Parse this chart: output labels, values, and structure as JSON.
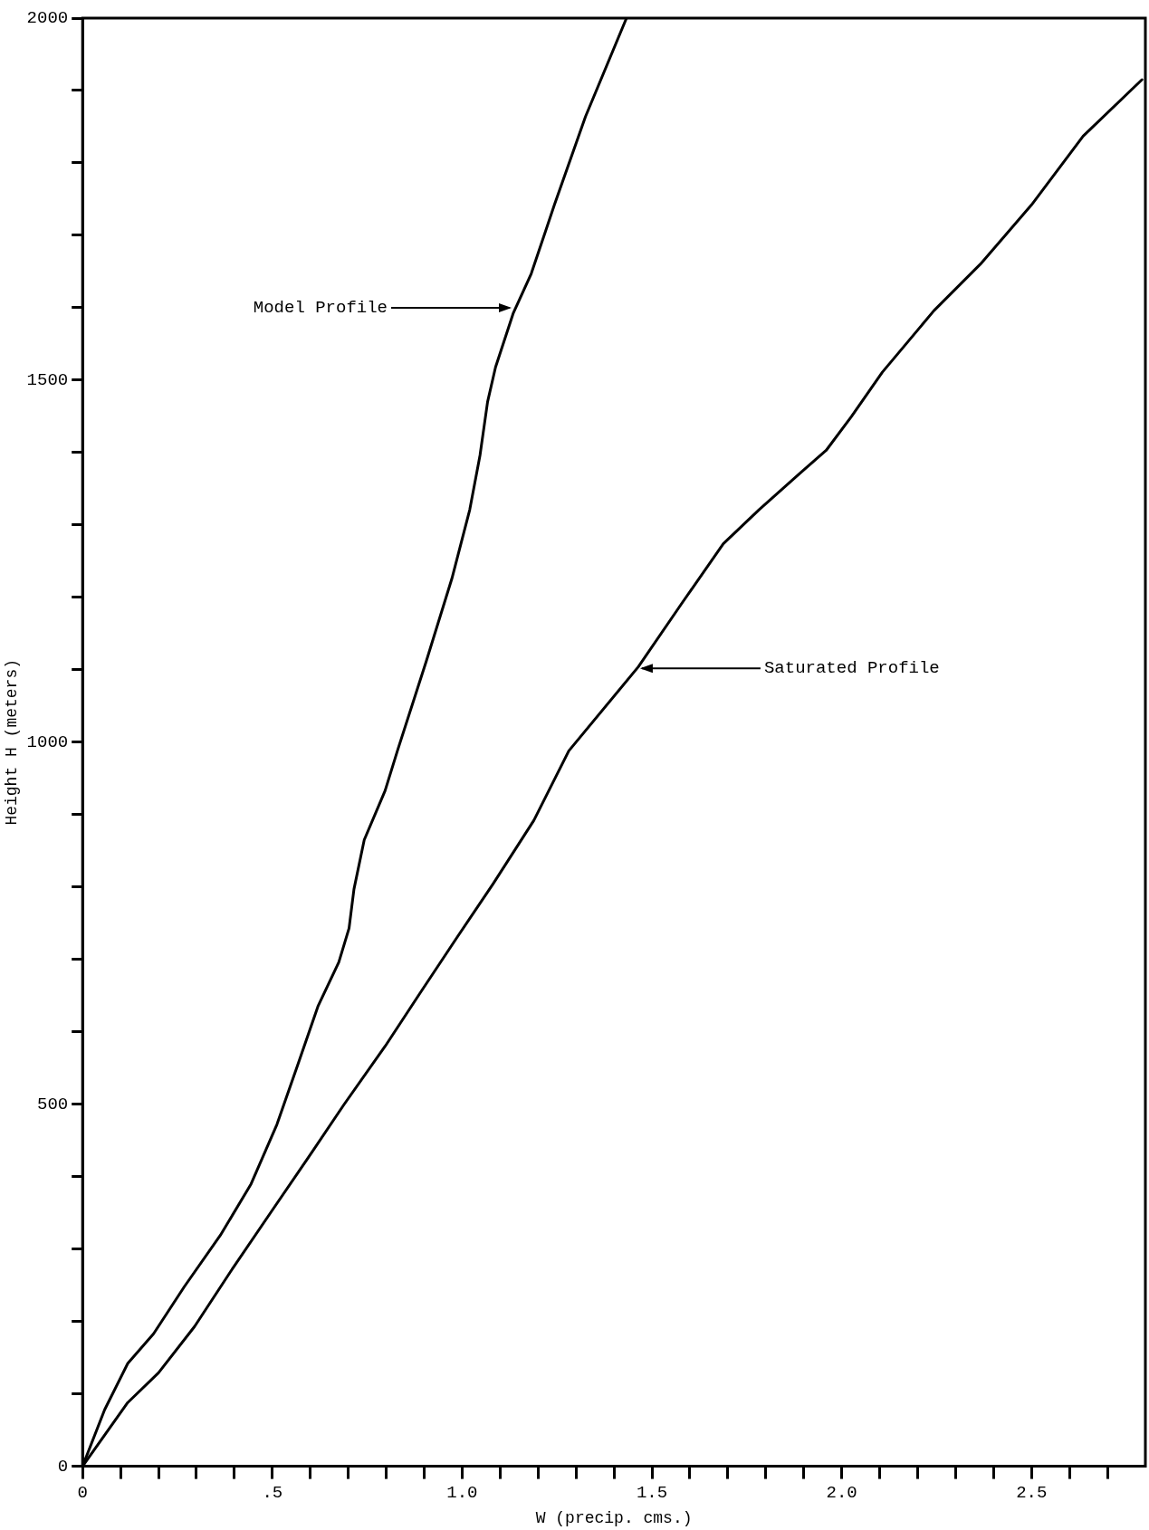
{
  "chart_data": {
    "type": "line",
    "xlabel": "W (precip. cms.)",
    "ylabel": "Height H (meters)",
    "xlim": [
      0,
      2.8
    ],
    "ylim": [
      0,
      2000
    ],
    "xticks": [
      {
        "value": 0,
        "label": "0"
      },
      {
        "value": 0.1,
        "label": null
      },
      {
        "value": 0.2,
        "label": null
      },
      {
        "value": 0.3,
        "label": null
      },
      {
        "value": 0.4,
        "label": null
      },
      {
        "value": 0.5,
        "label": ".5"
      },
      {
        "value": 0.6,
        "label": null
      },
      {
        "value": 0.7,
        "label": null
      },
      {
        "value": 0.8,
        "label": null
      },
      {
        "value": 0.9,
        "label": null
      },
      {
        "value": 1,
        "label": "1.0"
      },
      {
        "value": 1.1,
        "label": null
      },
      {
        "value": 1.2,
        "label": null
      },
      {
        "value": 1.3,
        "label": null
      },
      {
        "value": 1.4,
        "label": null
      },
      {
        "value": 1.5,
        "label": "1.5"
      },
      {
        "value": 1.6,
        "label": null
      },
      {
        "value": 1.7,
        "label": null
      },
      {
        "value": 1.8,
        "label": null
      },
      {
        "value": 1.9,
        "label": null
      },
      {
        "value": 2,
        "label": "2.0"
      },
      {
        "value": 2.1,
        "label": null
      },
      {
        "value": 2.2,
        "label": null
      },
      {
        "value": 2.3,
        "label": null
      },
      {
        "value": 2.4,
        "label": null
      },
      {
        "value": 2.5,
        "label": "2.5"
      },
      {
        "value": 2.6,
        "label": null
      },
      {
        "value": 2.7,
        "label": null
      }
    ],
    "yticks": [
      0,
      {
        "value": 100,
        "label": null
      },
      {
        "value": 200,
        "label": null
      },
      {
        "value": 300,
        "label": null
      },
      {
        "value": 400,
        "label": null
      },
      500,
      {
        "value": 600,
        "label": null
      },
      {
        "value": 700,
        "label": null
      },
      {
        "value": 800,
        "label": null
      },
      {
        "value": 900,
        "label": null
      },
      1000,
      {
        "value": 1100,
        "label": null
      },
      {
        "value": 1200,
        "label": null
      },
      {
        "value": 1300,
        "label": null
      },
      {
        "value": 1400,
        "label": null
      },
      1500,
      {
        "value": 1600,
        "label": null
      },
      {
        "value": 1700,
        "label": null
      },
      {
        "value": 1800,
        "label": null
      },
      {
        "value": 1900,
        "label": null
      },
      2000
    ],
    "grid": false,
    "legend": false,
    "marker": "none",
    "line_style": "solid",
    "series": [
      {
        "color": "#000000",
        "x": [
          0,
          0.058,
          0.119,
          0.187,
          0.268,
          0.363,
          0.444,
          0.512,
          0.566,
          0.62,
          0.675,
          0.702,
          0.715,
          0.742,
          0.797,
          0.83,
          0.905,
          0.973,
          1.02,
          1.047,
          1.067,
          1.088,
          1.135,
          1.182,
          1.243,
          1.325,
          1.433
        ],
        "values": [
          0,
          78,
          142,
          183,
          248,
          319,
          390,
          472,
          553,
          635,
          696,
          743,
          797,
          865,
          933,
          989,
          1111,
          1226,
          1321,
          1396,
          1470,
          1518,
          1593,
          1647,
          1742,
          1864,
          2000
        ]
      },
      {
        "color": "#000000",
        "x": [
          0,
          0.119,
          0.2,
          0.295,
          0.39,
          0.499,
          0.593,
          0.688,
          0.797,
          0.891,
          0.986,
          1.081,
          1.189,
          1.281,
          1.464,
          1.579,
          1.688,
          1.782,
          1.891,
          1.959,
          2.026,
          2.107,
          2.243,
          2.365,
          2.5,
          2.636,
          2.791
        ],
        "values": [
          0,
          88,
          129,
          193,
          269,
          353,
          425,
          499,
          580,
          655,
          730,
          804,
          892,
          988,
          1104,
          1192,
          1274,
          1321,
          1372,
          1403,
          1450,
          1511,
          1596,
          1660,
          1742,
          1837,
          1915
        ]
      }
    ],
    "annotations": [
      {
        "text": "Model Profile",
        "x": 1.135,
        "y": 1600
      },
      {
        "text": "Saturated Profile",
        "x": 1.464,
        "y": 1102
      }
    ]
  }
}
